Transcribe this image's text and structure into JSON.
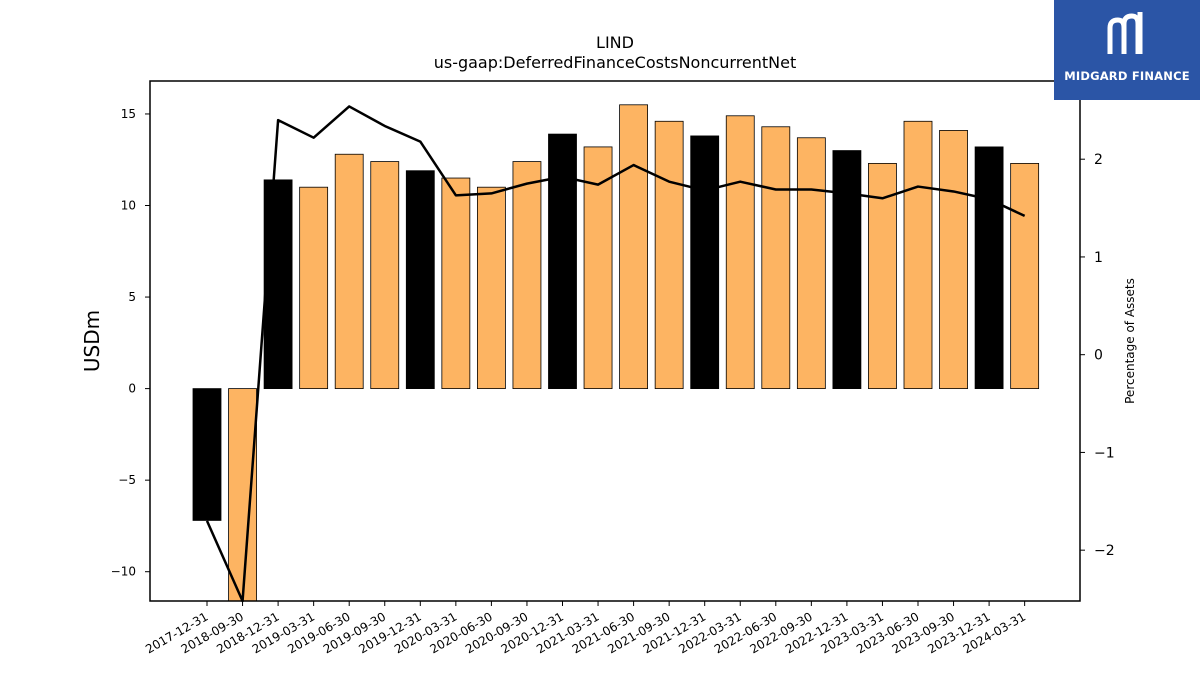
{
  "chart_data": {
    "type": "bar",
    "title": "LIND",
    "subtitle": "us-gaap:DeferredFinanceCostsNoncurrentNet",
    "ylabel": "USDm",
    "y2label": "Percentage of Assets",
    "categories": [
      "2017-12-31",
      "2018-09-30",
      "2018-12-31",
      "2019-03-31",
      "2019-06-30",
      "2019-09-30",
      "2019-12-31",
      "2020-03-31",
      "2020-06-30",
      "2020-09-30",
      "2020-12-31",
      "2021-03-31",
      "2021-06-30",
      "2021-09-30",
      "2021-12-31",
      "2022-03-31",
      "2022-06-30",
      "2022-09-30",
      "2022-12-31",
      "2023-03-31",
      "2023-06-30",
      "2023-09-30",
      "2023-12-31",
      "2024-03-31"
    ],
    "series": [
      {
        "axis": "left",
        "kind": "bar",
        "values": [
          -7.2,
          -11.7,
          11.4,
          11.0,
          12.8,
          12.4,
          11.9,
          11.5,
          11.0,
          12.4,
          13.9,
          13.2,
          15.5,
          14.6,
          13.8,
          14.9,
          14.3,
          13.7,
          13.0,
          12.3,
          14.6,
          14.1,
          13.2,
          12.3
        ],
        "colors": [
          "#000000",
          "#fdb462",
          "#000000",
          "#fdb462",
          "#fdb462",
          "#fdb462",
          "#000000",
          "#fdb462",
          "#fdb462",
          "#fdb462",
          "#000000",
          "#fdb462",
          "#fdb462",
          "#fdb462",
          "#000000",
          "#fdb462",
          "#fdb462",
          "#fdb462",
          "#000000",
          "#fdb462",
          "#fdb462",
          "#fdb462",
          "#000000",
          "#fdb462"
        ]
      },
      {
        "axis": "right",
        "kind": "line",
        "color": "#000000",
        "values": [
          -1.7,
          -2.55,
          2.4,
          2.22,
          2.54,
          2.34,
          2.18,
          1.63,
          1.65,
          1.75,
          1.82,
          1.74,
          1.94,
          1.77,
          1.68,
          1.77,
          1.69,
          1.69,
          1.65,
          1.6,
          1.72,
          1.67,
          1.59,
          1.42
        ]
      }
    ],
    "ylim": [
      -11.6,
      16.8
    ],
    "y2lim": [
      -2.52,
      2.8
    ],
    "yticks": [
      -10,
      -5,
      0,
      5,
      10,
      15
    ],
    "y2ticks": [
      -2,
      -1,
      0,
      1,
      2
    ],
    "ytick_labels": [
      "−10",
      "−5",
      "0",
      "5",
      "10",
      "15"
    ],
    "y2tick_labels": [
      "−2",
      "−1",
      "0",
      "1",
      "2"
    ],
    "grid": false,
    "legend": "none"
  },
  "logo": {
    "text": "MIDGARD FINANCE",
    "background": "#2b55a6"
  }
}
